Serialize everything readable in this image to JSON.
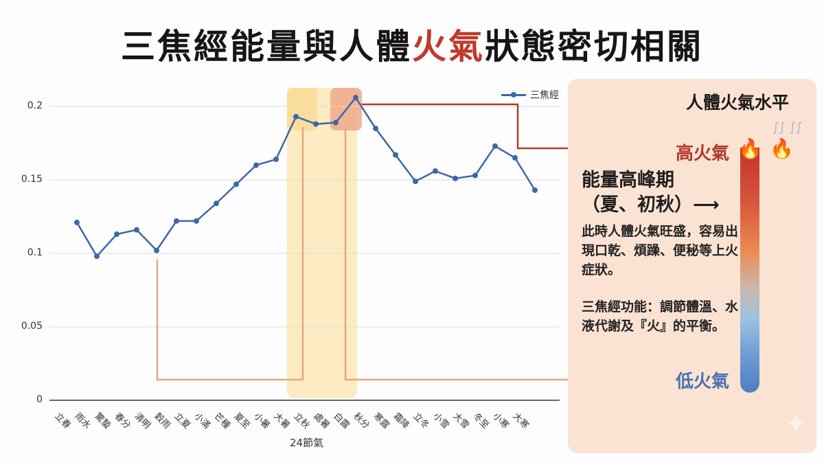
{
  "title": {
    "pre": "三焦經能量與人體",
    "highlight": "火氣",
    "post": "狀態密切相關"
  },
  "panel": {
    "title": "人體火氣水平",
    "high_label": "高火氣",
    "low_label": "低火氣",
    "peak_line1": "能量高峰期",
    "peak_line2": "（夏、初秋）⟶",
    "desc": "此時人體火氣旺盛，容易出現口乾、煩躁、便秘等上火症狀。",
    "function": "三焦經功能：調節體溫、水液代謝及『火』的平衡。",
    "icons": [
      "fire-icon",
      "fire-icon",
      "steam-icon",
      "sparkle-icon"
    ]
  },
  "colors": {
    "line": "#3d68a8",
    "high": "#b23a2b",
    "low": "#4a72b0",
    "highlight_band": "#fbe7b8",
    "highlight_peak": "#f0a98a",
    "connector_orange": "#e7a67c",
    "connector_red": "#b23a2b"
  },
  "chart_data": {
    "type": "line",
    "title": "三焦經能量與人體火氣狀態密切相關",
    "xlabel": "24節氣",
    "ylabel": "",
    "ylim": [
      0,
      0.2
    ],
    "yticks": [
      0,
      0.05,
      0.1,
      0.15,
      0.2
    ],
    "grid": true,
    "legend_position": "top-right",
    "categories": [
      "立春",
      "雨水",
      "驚蟄",
      "春分",
      "清明",
      "穀雨",
      "立夏",
      "小滿",
      "芒種",
      "夏至",
      "小暑",
      "大暑",
      "立秋",
      "處暑",
      "白露",
      "秋分",
      "寒露",
      "霜降",
      "立冬",
      "小雪",
      "大雪",
      "冬至",
      "小寒",
      "大寒"
    ],
    "series": [
      {
        "name": "三焦經",
        "values": [
          0.121,
          0.098,
          0.113,
          0.116,
          0.102,
          0.122,
          0.122,
          0.134,
          0.147,
          0.16,
          0.164,
          0.193,
          0.188,
          0.189,
          0.206,
          0.185,
          0.167,
          0.149,
          0.156,
          0.151,
          0.153,
          0.173,
          0.165,
          0.143
        ]
      }
    ],
    "annotations": [
      "高火氣",
      "低火氣",
      "能量高峰期（夏、初秋）"
    ]
  }
}
